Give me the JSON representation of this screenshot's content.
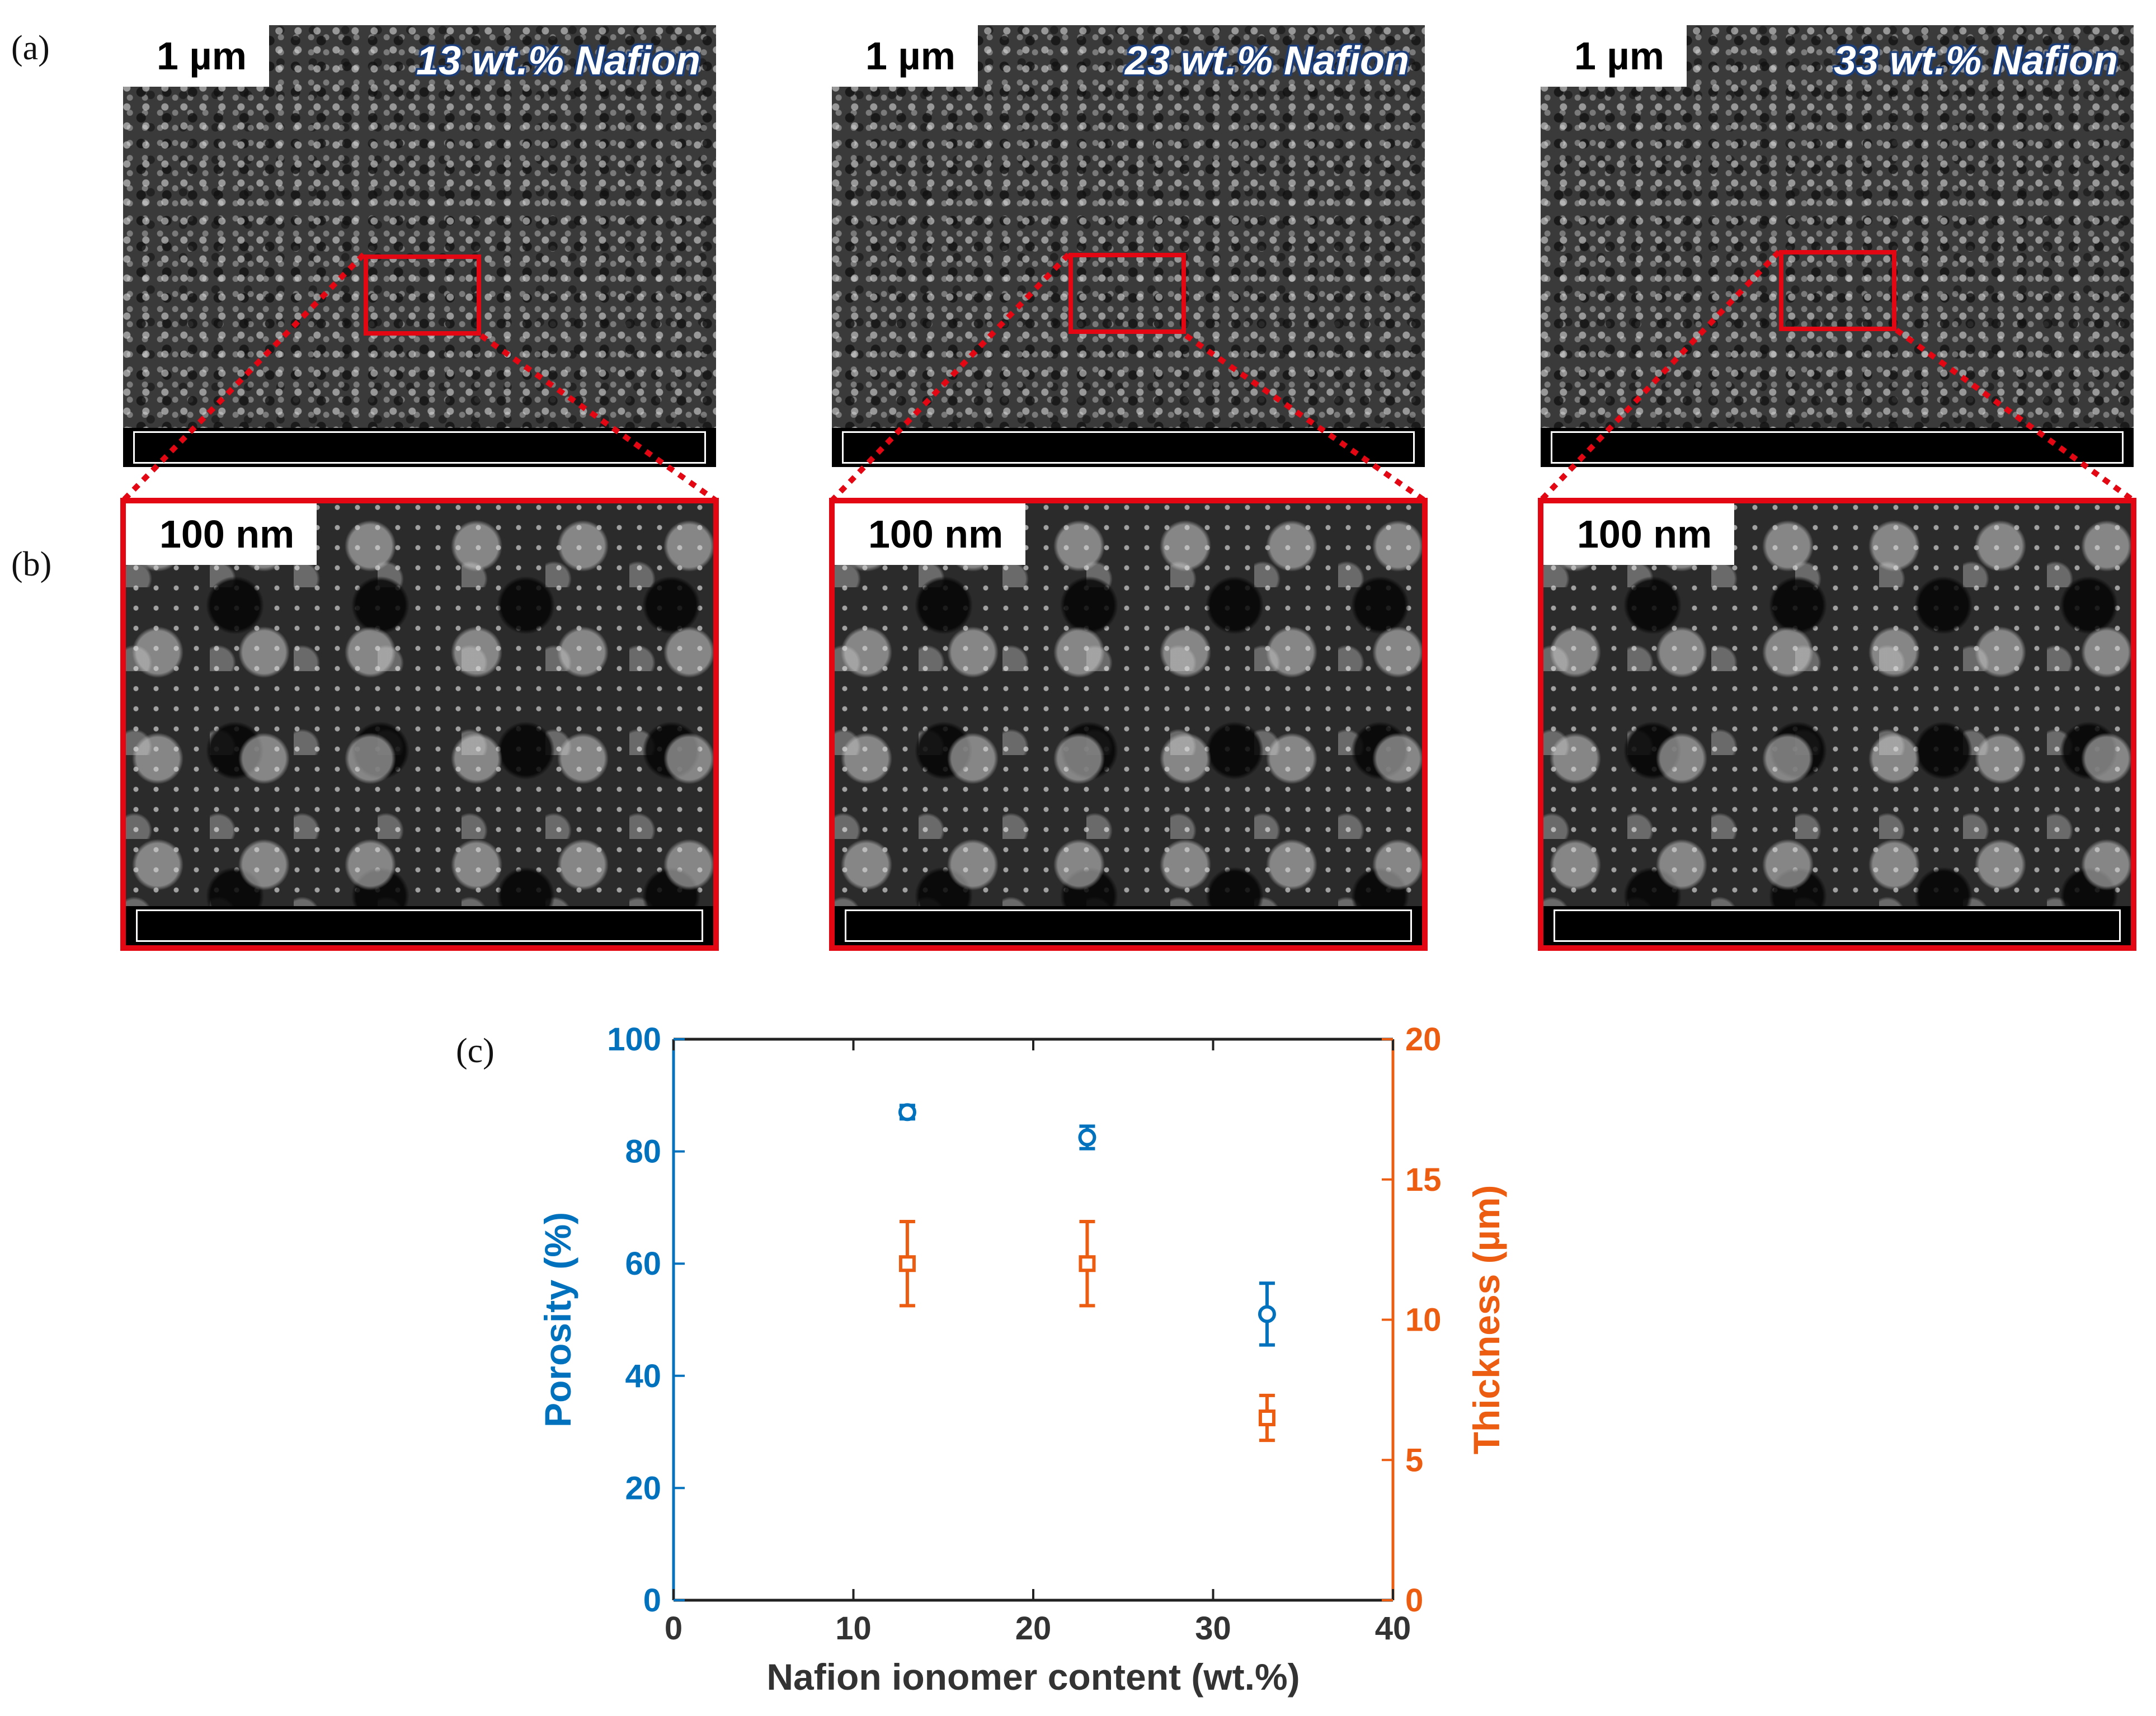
{
  "panel_labels": {
    "a": "(a)",
    "b": "(b)",
    "c": "(c)"
  },
  "sem_panels": [
    {
      "sample": "13 wt.% Nafion",
      "low_mag_scale": "1 µm",
      "high_mag_scale": "100 nm"
    },
    {
      "sample": "23 wt.% Nafion",
      "low_mag_scale": "1 µm",
      "high_mag_scale": "100 nm"
    },
    {
      "sample": "33 wt.% Nafion",
      "low_mag_scale": "1 µm",
      "high_mag_scale": "100 nm"
    }
  ],
  "colors": {
    "porosity": "#0072bd",
    "thickness": "#ec5d12",
    "highlight": "#e30613"
  },
  "chart_data": {
    "type": "scatter",
    "xlabel": "Nafion ionomer content (wt.%)",
    "ylabel_left": "Porosity (%)",
    "ylabel_right": "Thickness (µm)",
    "xlim": [
      0,
      40
    ],
    "ylim_left": [
      0,
      100
    ],
    "ylim_right": [
      0,
      20
    ],
    "x_ticks": [
      "0",
      "10",
      "20",
      "30",
      "40"
    ],
    "y_ticks_left": [
      "0",
      "20",
      "40",
      "60",
      "80",
      "100"
    ],
    "y_ticks_right": [
      "0",
      "5",
      "10",
      "15",
      "20"
    ],
    "series": [
      {
        "axis": "left",
        "marker": "circle",
        "x": [
          13,
          23,
          33
        ],
        "y": [
          87,
          82.5,
          51
        ],
        "err": [
          1.2,
          2.0,
          5.5
        ]
      },
      {
        "axis": "right",
        "marker": "square",
        "x": [
          13,
          23,
          33
        ],
        "y": [
          12,
          12,
          6.5
        ],
        "err": [
          1.5,
          1.5,
          0.8
        ]
      }
    ]
  }
}
